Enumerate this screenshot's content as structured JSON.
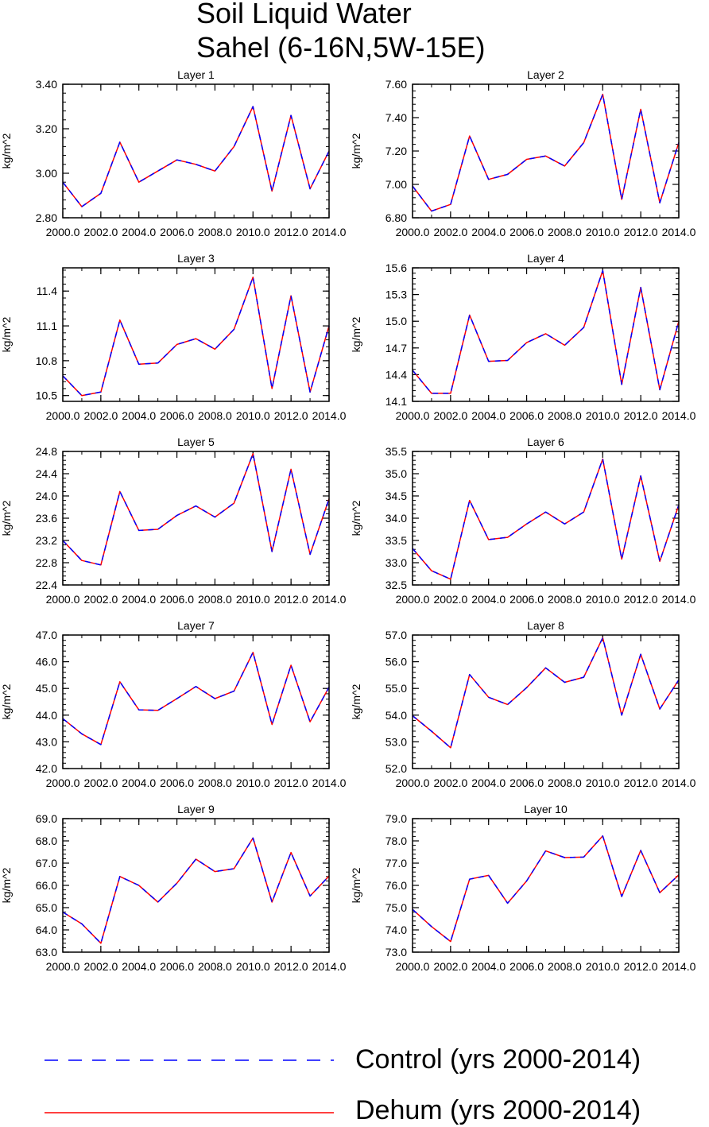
{
  "title": "Soil Liquid Water",
  "subtitle": "Sahel (6-16N,5W-15E)",
  "colors": {
    "control": "#0000ff",
    "dehum": "#ff0000",
    "axis": "#000000"
  },
  "legend": [
    {
      "label": "Control (yrs 2000-2014)",
      "color": "#0000ff",
      "style": "dashed"
    },
    {
      "label": "Dehum (yrs 2000-2014)",
      "color": "#ff0000",
      "style": "solid"
    }
  ],
  "chart_data": [
    {
      "type": "line",
      "title": "Layer 1",
      "ylabel": "kg/m^2",
      "x": [
        2000,
        2001,
        2002,
        2003,
        2004,
        2005,
        2006,
        2007,
        2008,
        2009,
        2010,
        2011,
        2012,
        2013,
        2014
      ],
      "xlim": [
        2000,
        2014
      ],
      "xticks": [
        "2000.0",
        "2002.0",
        "2004.0",
        "2006.0",
        "2008.0",
        "2010.0",
        "2012.0",
        "2014.0"
      ],
      "ylim": [
        2.8,
        3.4
      ],
      "yticks": [
        "2.80",
        "3.00",
        "3.20",
        "3.40"
      ],
      "series": [
        {
          "name": "Control (yrs 2000-2014)",
          "values": [
            2.96,
            2.85,
            2.91,
            3.14,
            2.96,
            3.01,
            3.06,
            3.04,
            3.01,
            3.12,
            3.3,
            2.92,
            3.26,
            2.93,
            3.1
          ]
        },
        {
          "name": "Dehum (yrs 2000-2014)",
          "values": [
            2.96,
            2.85,
            2.91,
            3.14,
            2.96,
            3.01,
            3.06,
            3.04,
            3.01,
            3.12,
            3.3,
            2.92,
            3.26,
            2.93,
            3.1
          ]
        }
      ]
    },
    {
      "type": "line",
      "title": "Layer 2",
      "ylabel": "kg/m^2",
      "x": [
        2000,
        2001,
        2002,
        2003,
        2004,
        2005,
        2006,
        2007,
        2008,
        2009,
        2010,
        2011,
        2012,
        2013,
        2014
      ],
      "xlim": [
        2000,
        2014
      ],
      "xticks": [
        "2000.0",
        "2002.0",
        "2004.0",
        "2006.0",
        "2008.0",
        "2010.0",
        "2012.0",
        "2014.0"
      ],
      "ylim": [
        6.8,
        7.6
      ],
      "yticks": [
        "6.80",
        "7.00",
        "7.20",
        "7.40",
        "7.60"
      ],
      "series": [
        {
          "name": "Control (yrs 2000-2014)",
          "values": [
            6.99,
            6.84,
            6.88,
            7.29,
            7.03,
            7.06,
            7.15,
            7.17,
            7.11,
            7.25,
            7.54,
            6.91,
            7.45,
            6.89,
            7.25
          ]
        },
        {
          "name": "Dehum (yrs 2000-2014)",
          "values": [
            6.99,
            6.84,
            6.88,
            7.29,
            7.03,
            7.06,
            7.15,
            7.17,
            7.11,
            7.25,
            7.54,
            6.91,
            7.45,
            6.89,
            7.25
          ]
        }
      ]
    },
    {
      "type": "line",
      "title": "Layer 3",
      "ylabel": "kg/m^2",
      "x": [
        2000,
        2001,
        2002,
        2003,
        2004,
        2005,
        2006,
        2007,
        2008,
        2009,
        2010,
        2011,
        2012,
        2013,
        2014
      ],
      "xlim": [
        2000,
        2014
      ],
      "xticks": [
        "2000.0",
        "2002.0",
        "2004.0",
        "2006.0",
        "2008.0",
        "2010.0",
        "2012.0",
        "2014.0"
      ],
      "ylim": [
        10.45,
        11.6
      ],
      "yticks": [
        "10.5",
        "10.8",
        "11.1",
        "11.4"
      ],
      "series": [
        {
          "name": "Control (yrs 2000-2014)",
          "values": [
            10.67,
            10.5,
            10.53,
            11.15,
            10.77,
            10.78,
            10.94,
            10.99,
            10.9,
            11.07,
            11.52,
            10.56,
            11.36,
            10.53,
            11.1
          ]
        },
        {
          "name": "Dehum (yrs 2000-2014)",
          "values": [
            10.67,
            10.5,
            10.53,
            11.15,
            10.77,
            10.78,
            10.94,
            10.99,
            10.9,
            11.07,
            11.52,
            10.56,
            11.36,
            10.53,
            11.1
          ]
        }
      ]
    },
    {
      "type": "line",
      "title": "Layer 4",
      "ylabel": "kg/m^2",
      "x": [
        2000,
        2001,
        2002,
        2003,
        2004,
        2005,
        2006,
        2007,
        2008,
        2009,
        2010,
        2011,
        2012,
        2013,
        2014
      ],
      "xlim": [
        2000,
        2014
      ],
      "xticks": [
        "2000.0",
        "2002.0",
        "2004.0",
        "2006.0",
        "2008.0",
        "2010.0",
        "2012.0",
        "2014.0"
      ],
      "ylim": [
        14.1,
        15.6
      ],
      "yticks": [
        "14.1",
        "14.4",
        "14.7",
        "15.0",
        "15.3",
        "15.6"
      ],
      "series": [
        {
          "name": "Control (yrs 2000-2014)",
          "values": [
            14.45,
            14.19,
            14.19,
            15.07,
            14.55,
            14.56,
            14.76,
            14.86,
            14.73,
            14.93,
            15.57,
            14.29,
            15.38,
            14.23,
            15.0
          ]
        },
        {
          "name": "Dehum (yrs 2000-2014)",
          "values": [
            14.45,
            14.19,
            14.19,
            15.07,
            14.55,
            14.56,
            14.76,
            14.86,
            14.73,
            14.93,
            15.57,
            14.29,
            15.38,
            14.23,
            15.0
          ]
        }
      ]
    },
    {
      "type": "line",
      "title": "Layer 5",
      "ylabel": "kg/m^2",
      "x": [
        2000,
        2001,
        2002,
        2003,
        2004,
        2005,
        2006,
        2007,
        2008,
        2009,
        2010,
        2011,
        2012,
        2013,
        2014
      ],
      "xlim": [
        2000,
        2014
      ],
      "xticks": [
        "2000.0",
        "2002.0",
        "2004.0",
        "2006.0",
        "2008.0",
        "2010.0",
        "2012.0",
        "2014.0"
      ],
      "ylim": [
        22.4,
        24.8
      ],
      "yticks": [
        "22.4",
        "22.8",
        "23.2",
        "23.6",
        "24.0",
        "24.4",
        "24.8"
      ],
      "series": [
        {
          "name": "Control (yrs 2000-2014)",
          "values": [
            23.2,
            22.84,
            22.76,
            24.08,
            23.38,
            23.4,
            23.65,
            23.82,
            23.62,
            23.87,
            24.76,
            23.0,
            24.48,
            22.95,
            23.95
          ]
        },
        {
          "name": "Dehum (yrs 2000-2014)",
          "values": [
            23.2,
            22.84,
            22.76,
            24.08,
            23.38,
            23.4,
            23.65,
            23.82,
            23.62,
            23.87,
            24.76,
            23.0,
            24.48,
            22.95,
            23.95
          ]
        }
      ]
    },
    {
      "type": "line",
      "title": "Layer 6",
      "ylabel": "kg/m^2",
      "x": [
        2000,
        2001,
        2002,
        2003,
        2004,
        2005,
        2006,
        2007,
        2008,
        2009,
        2010,
        2011,
        2012,
        2013,
        2014
      ],
      "xlim": [
        2000,
        2014
      ],
      "xticks": [
        "2000.0",
        "2002.0",
        "2004.0",
        "2006.0",
        "2008.0",
        "2010.0",
        "2012.0",
        "2014.0"
      ],
      "ylim": [
        32.5,
        35.5
      ],
      "yticks": [
        "32.5",
        "33.0",
        "33.5",
        "34.0",
        "34.5",
        "35.0",
        "35.5"
      ],
      "series": [
        {
          "name": "Control (yrs 2000-2014)",
          "values": [
            33.32,
            32.82,
            32.63,
            34.4,
            33.52,
            33.57,
            33.87,
            34.14,
            33.87,
            34.14,
            35.33,
            33.08,
            34.95,
            33.03,
            34.3
          ]
        },
        {
          "name": "Dehum (yrs 2000-2014)",
          "values": [
            33.32,
            32.82,
            32.63,
            34.4,
            33.52,
            33.57,
            33.87,
            34.14,
            33.87,
            34.14,
            35.33,
            33.08,
            34.95,
            33.03,
            34.3
          ]
        }
      ]
    },
    {
      "type": "line",
      "title": "Layer 7",
      "ylabel": "kg/m^2",
      "x": [
        2000,
        2001,
        2002,
        2003,
        2004,
        2005,
        2006,
        2007,
        2008,
        2009,
        2010,
        2011,
        2012,
        2013,
        2014
      ],
      "xlim": [
        2000,
        2014
      ],
      "xticks": [
        "2000.0",
        "2002.0",
        "2004.0",
        "2006.0",
        "2008.0",
        "2010.0",
        "2012.0",
        "2014.0"
      ],
      "ylim": [
        42.0,
        47.0
      ],
      "yticks": [
        "42.0",
        "43.0",
        "44.0",
        "45.0",
        "46.0",
        "47.0"
      ],
      "series": [
        {
          "name": "Control (yrs 2000-2014)",
          "values": [
            43.87,
            43.3,
            42.9,
            45.25,
            44.2,
            44.18,
            44.62,
            45.07,
            44.62,
            44.9,
            46.35,
            43.65,
            45.87,
            43.75,
            45.05
          ]
        },
        {
          "name": "Dehum (yrs 2000-2014)",
          "values": [
            43.87,
            43.3,
            42.9,
            45.25,
            44.2,
            44.18,
            44.62,
            45.07,
            44.62,
            44.9,
            46.35,
            43.65,
            45.87,
            43.75,
            45.05
          ]
        }
      ]
    },
    {
      "type": "line",
      "title": "Layer 8",
      "ylabel": "kg/m^2",
      "x": [
        2000,
        2001,
        2002,
        2003,
        2004,
        2005,
        2006,
        2007,
        2008,
        2009,
        2010,
        2011,
        2012,
        2013,
        2014
      ],
      "xlim": [
        2000,
        2014
      ],
      "xticks": [
        "2000.0",
        "2002.0",
        "2004.0",
        "2006.0",
        "2008.0",
        "2010.0",
        "2012.0",
        "2014.0"
      ],
      "ylim": [
        52.0,
        57.0
      ],
      "yticks": [
        "52.0",
        "53.0",
        "54.0",
        "55.0",
        "56.0",
        "57.0"
      ],
      "series": [
        {
          "name": "Control (yrs 2000-2014)",
          "values": [
            53.98,
            53.4,
            52.78,
            55.52,
            54.67,
            54.4,
            55.03,
            55.77,
            55.23,
            55.42,
            56.9,
            54.0,
            56.28,
            54.23,
            55.32
          ]
        },
        {
          "name": "Dehum (yrs 2000-2014)",
          "values": [
            53.98,
            53.4,
            52.78,
            55.52,
            54.67,
            54.4,
            55.03,
            55.77,
            55.23,
            55.42,
            56.9,
            54.0,
            56.28,
            54.23,
            55.32
          ]
        }
      ]
    },
    {
      "type": "line",
      "title": "Layer 9",
      "ylabel": "kg/m^2",
      "x": [
        2000,
        2001,
        2002,
        2003,
        2004,
        2005,
        2006,
        2007,
        2008,
        2009,
        2010,
        2011,
        2012,
        2013,
        2014
      ],
      "xlim": [
        2000,
        2014
      ],
      "xticks": [
        "2000.0",
        "2002.0",
        "2004.0",
        "2006.0",
        "2008.0",
        "2010.0",
        "2012.0",
        "2014.0"
      ],
      "ylim": [
        63.0,
        69.0
      ],
      "yticks": [
        "63.0",
        "64.0",
        "65.0",
        "66.0",
        "67.0",
        "68.0",
        "69.0"
      ],
      "series": [
        {
          "name": "Control (yrs 2000-2014)",
          "values": [
            64.8,
            64.27,
            63.4,
            66.4,
            66.0,
            65.25,
            66.1,
            67.18,
            66.62,
            66.75,
            68.13,
            65.25,
            67.48,
            65.52,
            66.42
          ]
        },
        {
          "name": "Dehum (yrs 2000-2014)",
          "values": [
            64.8,
            64.27,
            63.4,
            66.4,
            66.0,
            65.25,
            66.1,
            67.18,
            66.62,
            66.75,
            68.13,
            65.25,
            67.48,
            65.52,
            66.42
          ]
        }
      ]
    },
    {
      "type": "line",
      "title": "Layer 10",
      "ylabel": "kg/m^2",
      "x": [
        2000,
        2001,
        2002,
        2003,
        2004,
        2005,
        2006,
        2007,
        2008,
        2009,
        2010,
        2011,
        2012,
        2013,
        2014
      ],
      "xlim": [
        2000,
        2014
      ],
      "xticks": [
        "2000.0",
        "2002.0",
        "2004.0",
        "2006.0",
        "2008.0",
        "2010.0",
        "2012.0",
        "2014.0"
      ],
      "ylim": [
        73.0,
        79.0
      ],
      "yticks": [
        "73.0",
        "74.0",
        "75.0",
        "76.0",
        "77.0",
        "78.0",
        "79.0"
      ],
      "series": [
        {
          "name": "Control (yrs 2000-2014)",
          "values": [
            74.92,
            74.15,
            73.48,
            76.28,
            76.45,
            75.2,
            76.2,
            77.55,
            77.25,
            77.27,
            78.22,
            75.5,
            77.57,
            75.67,
            76.47
          ]
        },
        {
          "name": "Dehum (yrs 2000-2014)",
          "values": [
            74.92,
            74.15,
            73.48,
            76.28,
            76.45,
            75.2,
            76.2,
            77.55,
            77.25,
            77.27,
            78.22,
            75.5,
            77.57,
            75.67,
            76.47
          ]
        }
      ]
    }
  ]
}
